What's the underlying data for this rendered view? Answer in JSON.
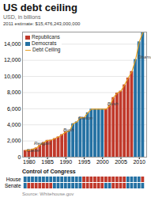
{
  "chart_data": {
    "type": "bar",
    "title": "US debt ceiling",
    "subtitle": "USD, in billions",
    "estimate_label": "2011 estimate: $15,476,243,000,000",
    "x": [
      1979,
      1980,
      1981,
      1982,
      1983,
      1984,
      1985,
      1986,
      1987,
      1988,
      1989,
      1990,
      1991,
      1992,
      1993,
      1994,
      1995,
      1996,
      1997,
      1998,
      1999,
      2000,
      2001,
      2002,
      2003,
      2004,
      2005,
      2006,
      2007,
      2008,
      2009,
      2010,
      2011
    ],
    "series": [
      {
        "type": "bar",
        "values": [
          830,
          879,
          994,
          1143,
          1490,
          1820,
          2079,
          2111,
          2300,
          2508,
          2800,
          3123,
          3230,
          4145,
          4370,
          4900,
          4900,
          5500,
          5950,
          5950,
          5950,
          5950,
          5950,
          6400,
          7384,
          7937,
          8184,
          8965,
          9815,
          10615,
          12104,
          14294,
          15476
        ],
        "colors": [
          "#c0392b",
          "#c0392b",
          "#c0392b",
          "#c0392b",
          "#c0392b",
          "#c0392b",
          "#c0392b",
          "#c0392b",
          "#c0392b",
          "#c0392b",
          "#c0392b",
          "#c0392b",
          "#2471a3",
          "#2471a3",
          "#2471a3",
          "#2471a3",
          "#2471a3",
          "#2471a3",
          "#2471a3",
          "#2471a3",
          "#2471a3",
          "#2471a3",
          "#c0392b",
          "#c0392b",
          "#c0392b",
          "#c0392b",
          "#c0392b",
          "#c0392b",
          "#c0392b",
          "#c0392b",
          "#2471a3",
          "#2471a3",
          "#2471a3"
        ]
      },
      {
        "name": "Debt Ceiling",
        "type": "line",
        "color": "#e8a020",
        "values": [
          830,
          879,
          994,
          1143,
          1490,
          1820,
          2079,
          2111,
          2300,
          2508,
          2800,
          3123,
          3230,
          4145,
          4370,
          4900,
          4900,
          5500,
          5950,
          5950,
          5950,
          5950,
          5950,
          6400,
          7384,
          7937,
          8184,
          8965,
          9815,
          10615,
          12104,
          14294,
          15476
        ]
      }
    ],
    "parties": [
      {
        "name": "Republicans",
        "color": "#c0392b"
      },
      {
        "name": "Democrats",
        "color": "#2471a3"
      }
    ],
    "legend": "top-left",
    "annotations": [
      {
        "text": "Carter",
        "x": 1979.3,
        "y": 600
      },
      {
        "text": "Reagan",
        "x": 1981.3,
        "y": 1500
      },
      {
        "text": "Bush",
        "x": 1989.3,
        "y": 3200
      },
      {
        "text": "Clinton",
        "x": 1993.3,
        "y": 4700
      },
      {
        "text": "Bush",
        "x": 2001.3,
        "y": 6400
      },
      {
        "text": "Obama",
        "x": 2009.5,
        "y": 12200
      }
    ],
    "xlim": [
      1978.2,
      2012.0
    ],
    "xticks": [
      1980,
      1985,
      1990,
      1995,
      2000,
      2005,
      2010
    ],
    "ylim": [
      0,
      15500
    ],
    "yticks": [
      0,
      {
        "value": 2000,
        "label": "2,000"
      },
      {
        "value": 4000,
        "label": "4,000"
      },
      {
        "value": 6000,
        "label": "6,000"
      },
      {
        "value": 8000,
        "label": "8,000"
      },
      {
        "value": 10000,
        "label": "10,000"
      },
      {
        "value": 12000,
        "label": "12,000"
      },
      {
        "value": 14000,
        "label": "14,000"
      }
    ],
    "grid": true,
    "congress_title": "Control of Congress",
    "congress": [
      {
        "name": "House",
        "colors": [
          "#2471a3",
          "#2471a3",
          "#2471a3",
          "#2471a3",
          "#2471a3",
          "#2471a3",
          "#2471a3",
          "#2471a3",
          "#2471a3",
          "#2471a3",
          "#2471a3",
          "#2471a3",
          "#2471a3",
          "#2471a3",
          "#2471a3",
          "#2471a3",
          "#c0392b",
          "#c0392b",
          "#c0392b",
          "#c0392b",
          "#c0392b",
          "#c0392b",
          "#c0392b",
          "#c0392b",
          "#c0392b",
          "#c0392b",
          "#c0392b",
          "#c0392b",
          "#2471a3",
          "#2471a3",
          "#2471a3",
          "#2471a3",
          "#c0392b"
        ]
      },
      {
        "name": "Senate",
        "colors": [
          "#2471a3",
          "#c0392b",
          "#c0392b",
          "#c0392b",
          "#c0392b",
          "#c0392b",
          "#c0392b",
          "#c0392b",
          "#2471a3",
          "#2471a3",
          "#2471a3",
          "#2471a3",
          "#2471a3",
          "#2471a3",
          "#2471a3",
          "#2471a3",
          "#c0392b",
          "#c0392b",
          "#c0392b",
          "#c0392b",
          "#c0392b",
          "#c0392b",
          "#2471a3",
          "#2471a3",
          "#c0392b",
          "#c0392b",
          "#c0392b",
          "#c0392b",
          "#2471a3",
          "#2471a3",
          "#2471a3",
          "#2471a3",
          "#2471a3"
        ]
      }
    ],
    "source": "Source: Whitehouse.gov"
  }
}
